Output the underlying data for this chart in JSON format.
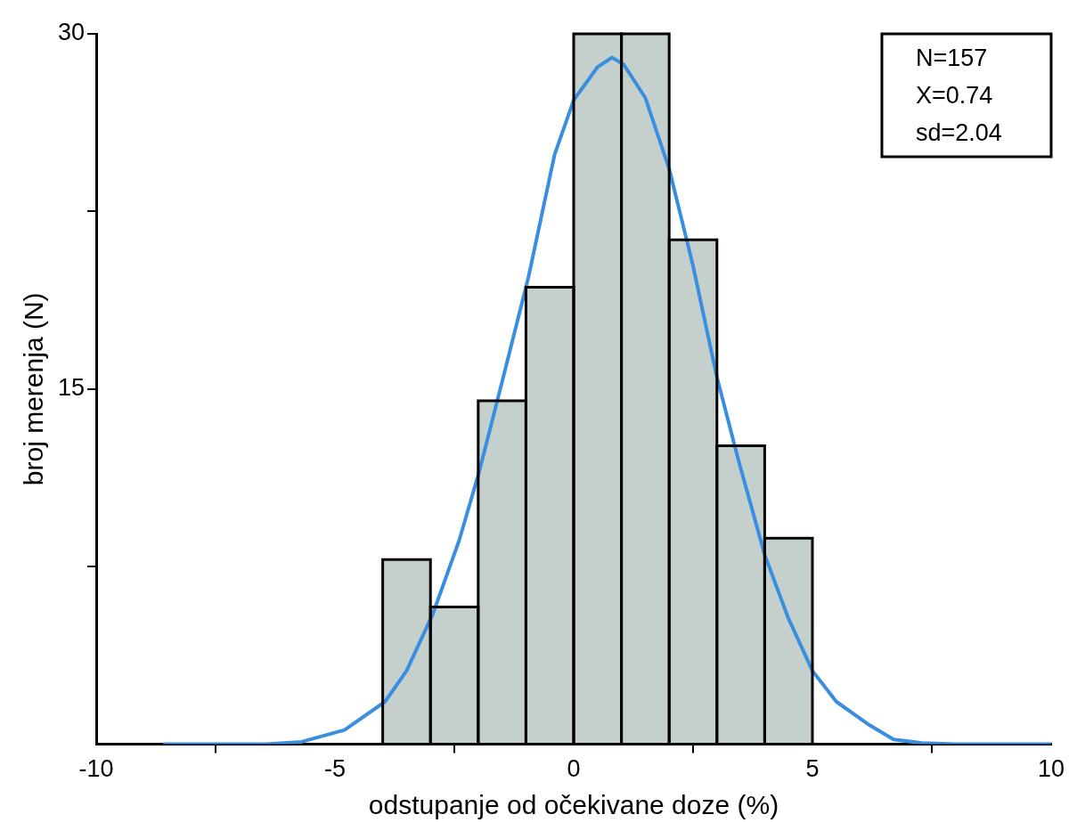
{
  "chart_data": {
    "type": "histogram",
    "xlabel": "odstupanje od očekivane doze (%)",
    "ylabel": "broj merenja (N)",
    "bins": [
      -4,
      -3,
      -2,
      -1,
      0,
      1,
      2,
      3,
      4,
      5
    ],
    "series": [
      {
        "color": "#c5d0cd",
        "values": [
          7.8,
          5.8,
          14.5,
          19.3,
          30,
          30,
          21.3,
          12.6,
          8.7
        ]
      },
      {
        "type": "line",
        "color": "#3a8ee0",
        "x": [
          -8.6,
          -6.45,
          -5.7,
          -4.8,
          -3.95,
          -3.5,
          -2.95,
          -2.4,
          -1.98,
          -1.5,
          -0.95,
          -0.4,
          0,
          0.5,
          0.8,
          1.05,
          1.5,
          2,
          2.5,
          3,
          3.45,
          4,
          4.5,
          5,
          5.5,
          6.2,
          6.7,
          7.3,
          8,
          10
        ],
        "values": [
          0,
          0,
          0.1,
          0.6,
          1.8,
          3.1,
          5.5,
          8.6,
          11.5,
          15.3,
          19.7,
          24.9,
          27.2,
          28.6,
          29,
          28.7,
          27.3,
          24.3,
          20.2,
          15.5,
          12,
          8,
          5.3,
          3.1,
          1.8,
          0.8,
          0.2,
          0.05,
          0,
          0
        ]
      }
    ],
    "xlim": [
      -10,
      10
    ],
    "xticks": [
      -10,
      -5,
      0,
      5,
      10
    ],
    "ylim": [
      0,
      30
    ],
    "yticks": [
      {
        "value": 7.5,
        "label": null
      },
      15,
      {
        "value": 22.5,
        "label": null
      },
      30
    ],
    "grid": false,
    "legend": false,
    "annotations": [
      "N=157",
      "X=0.74",
      "sd=2.04"
    ]
  }
}
